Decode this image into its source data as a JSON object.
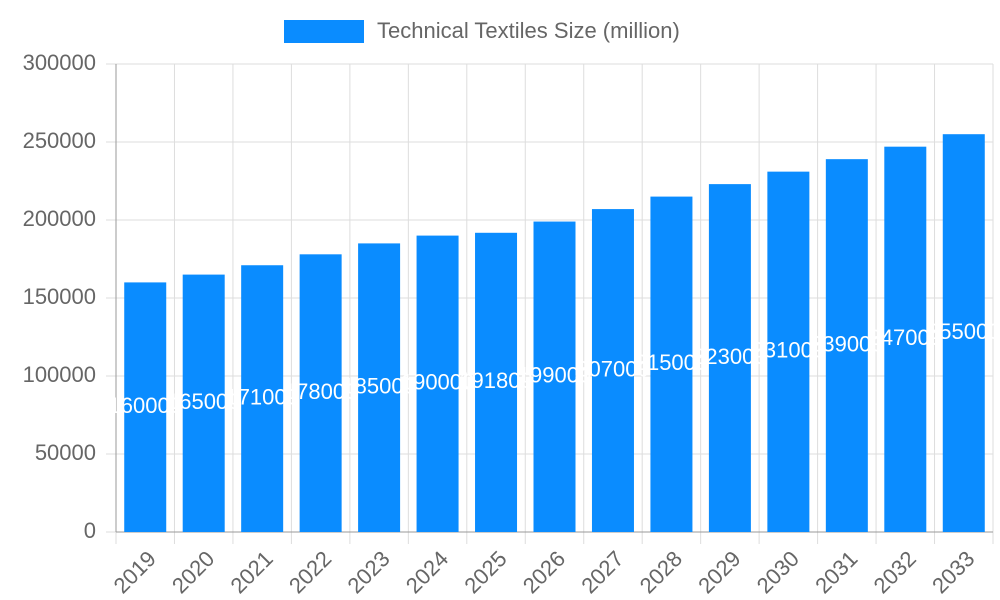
{
  "chart_data": {
    "type": "bar",
    "legend": "Technical Textiles Size (million)",
    "categories": [
      "2019",
      "2020",
      "2021",
      "2022",
      "2023",
      "2024",
      "2025",
      "2026",
      "2027",
      "2028",
      "2029",
      "2030",
      "2031",
      "2032",
      "2033"
    ],
    "values": [
      160000,
      165000,
      171000,
      178000,
      185000,
      190000,
      191800,
      199000,
      207000,
      215000,
      223000,
      231000,
      239000,
      247000,
      255000
    ],
    "color": "#0a8cff",
    "ylim": [
      0,
      300000
    ],
    "yticks": [
      0,
      50000,
      100000,
      150000,
      200000,
      250000,
      300000
    ],
    "grid": true,
    "data_labels": true
  }
}
